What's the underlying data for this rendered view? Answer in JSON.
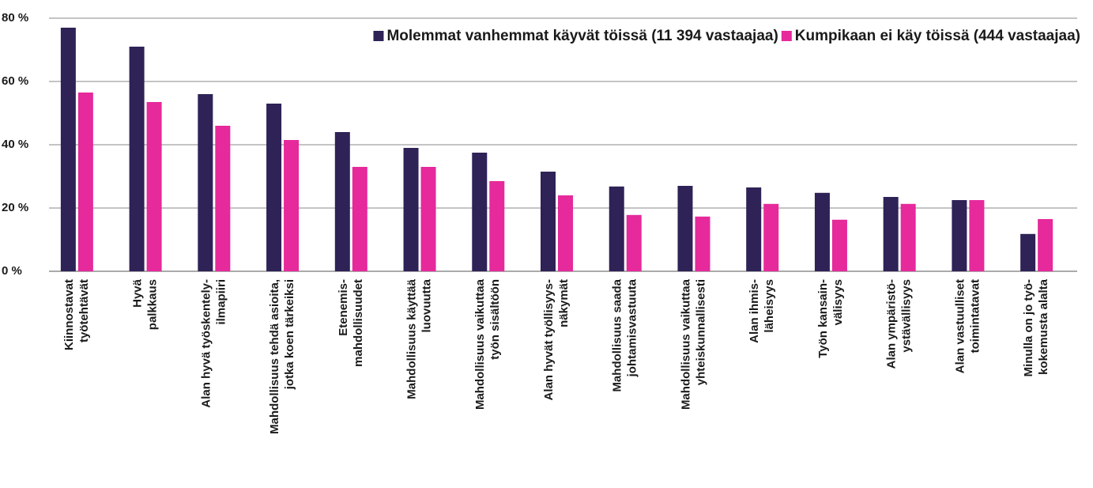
{
  "chart_data": {
    "type": "bar",
    "categories": [
      [
        "Kiinnostavat",
        "työtehtävät"
      ],
      [
        "Hyvä",
        "palkkaus"
      ],
      [
        "Alan hyvä työskentely-",
        "ilmapiiri"
      ],
      [
        "Mahdollisuus tehdä asioita,",
        "jotka koen tärkeiksi"
      ],
      [
        "Etenemis-",
        "mahdollisuudet"
      ],
      [
        "Mahdollisuus käyttää",
        "luovuutta"
      ],
      [
        "Mahdollisuus vaikuttaa",
        "työn sisältöön"
      ],
      [
        "Alan hyvät työllisyys-",
        "näkymät"
      ],
      [
        "Mahdollisuus saada",
        "johtamisvastuuta"
      ],
      [
        "Mahdollisuus vaikuttaa",
        "yhteiskunnallisesti"
      ],
      [
        "Alan ihmis-",
        "läheisyys"
      ],
      [
        "Työn kansain-",
        "välisyys"
      ],
      [
        "Alan ympäristö-",
        "ystävällisyys"
      ],
      [
        "Alan vastuulliset",
        "toimintatavat"
      ],
      [
        "Minulla on jo työ-",
        "kokemusta alalta"
      ]
    ],
    "series": [
      {
        "name": "Molemmat vanhemmat käyvät töissä (11 394 vastaajaa)",
        "color": "#2e2257",
        "values": [
          77,
          71,
          56,
          53,
          44,
          39,
          37.5,
          31.5,
          26.8,
          27,
          26.5,
          24.8,
          23.5,
          22.5,
          11.8
        ]
      },
      {
        "name": "Kumpikaan ei käy töissä (444 vastaajaa)",
        "color": "#e6299b",
        "values": [
          56.5,
          53.5,
          46,
          41.5,
          33,
          33,
          28.5,
          24,
          17.8,
          17.3,
          21.3,
          16.3,
          21.3,
          22.5,
          16.5
        ]
      }
    ],
    "ylim": [
      0,
      80
    ],
    "yticks": [
      {
        "value": 0,
        "label": "0 %"
      },
      {
        "value": 20,
        "label": "20 %"
      },
      {
        "value": 40,
        "label": "40 %"
      },
      {
        "value": 60,
        "label": "60 %"
      },
      {
        "value": 80,
        "label": "80 %"
      }
    ],
    "grid": true,
    "legend": "top-right"
  }
}
